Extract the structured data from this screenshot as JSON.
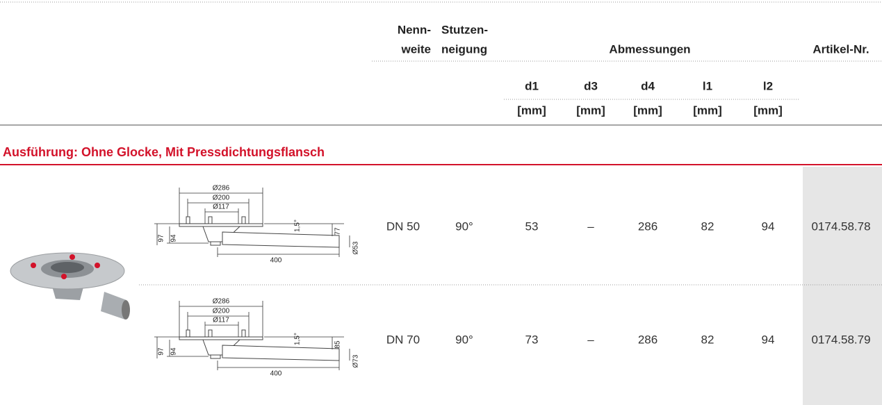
{
  "header": {
    "nennweite": [
      "Nenn-",
      "weite"
    ],
    "stutzenneigung": [
      "Stutzen-",
      "neigung"
    ],
    "abmessungen": "Abmessungen",
    "artikel": "Artikel-Nr.",
    "dims": [
      "d1",
      "d3",
      "d4",
      "l1",
      "l2"
    ],
    "unit": "[mm]"
  },
  "section": {
    "title": "Ausführung: Ohne Glocke, Mit Pressdichtungsflansch"
  },
  "rows": [
    {
      "drawing": {
        "d286": "Ø286",
        "d200": "Ø200",
        "d117": "Ø117",
        "h97": "97",
        "h94": "94",
        "angle": "1,5°",
        "h": "77",
        "dpipe": "Ø53",
        "len": "400"
      },
      "cells": [
        "DN 50",
        "90°",
        "53",
        "–",
        "286",
        "82",
        "94",
        "0174.58.78"
      ]
    },
    {
      "drawing": {
        "d286": "Ø286",
        "d200": "Ø200",
        "d117": "Ø117",
        "h97": "97",
        "h94": "94",
        "angle": "1,5°",
        "h": "85",
        "dpipe": "Ø73",
        "len": "400"
      },
      "cells": [
        "DN 70",
        "90°",
        "73",
        "–",
        "286",
        "82",
        "94",
        "0174.58.79"
      ]
    }
  ]
}
